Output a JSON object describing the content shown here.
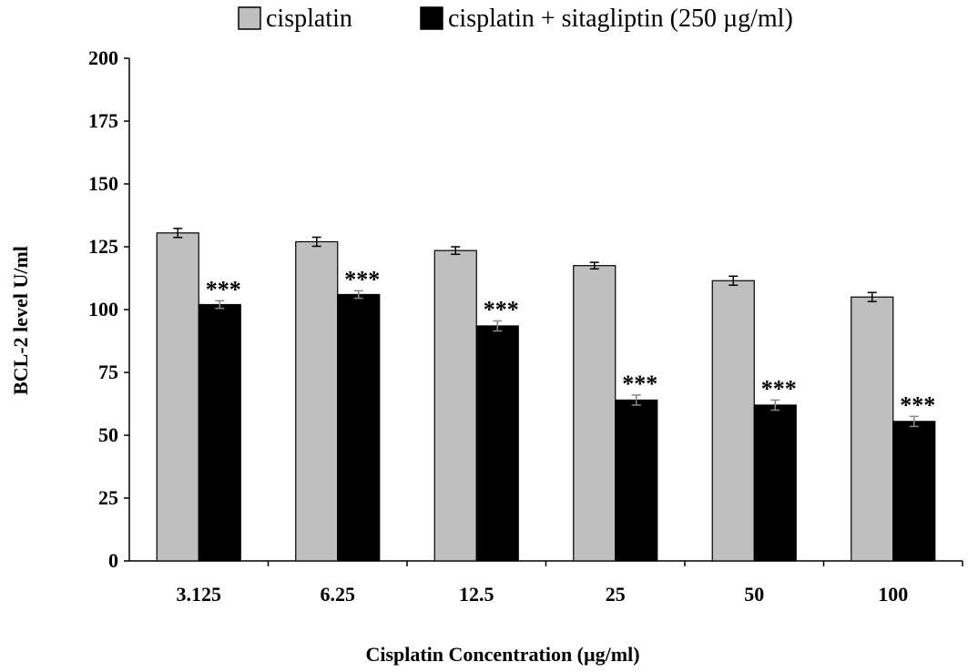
{
  "chart_data": {
    "type": "bar",
    "categories": [
      "3.125",
      "6.25",
      "12.5",
      "25",
      "50",
      "100"
    ],
    "series": [
      {
        "name": "cisplatin",
        "color": "#bfbfbf",
        "values": [
          130.5,
          127,
          123.5,
          117.5,
          111.5,
          105
        ],
        "errors": [
          1.8,
          1.8,
          1.5,
          1.3,
          1.8,
          1.8
        ]
      },
      {
        "name": "cisplatin + sitagliptin (250 µg/ml)",
        "color": "#000000",
        "values": [
          102,
          106,
          93.5,
          64,
          62,
          55.5
        ],
        "errors": [
          1.5,
          1.5,
          2.0,
          2.0,
          2.0,
          2.0
        ]
      }
    ],
    "annotations": [
      "***",
      "***",
      "***",
      "***",
      "***",
      "***"
    ],
    "xlabel": "Cisplatin Concentration (µg/ml)",
    "ylabel": "BCL-2 level U/ml",
    "ylim": [
      0,
      200
    ],
    "yticks": [
      "0",
      "25",
      "50",
      "75",
      "100",
      "125",
      "150",
      "175",
      "200"
    ],
    "legend_position": "top"
  }
}
